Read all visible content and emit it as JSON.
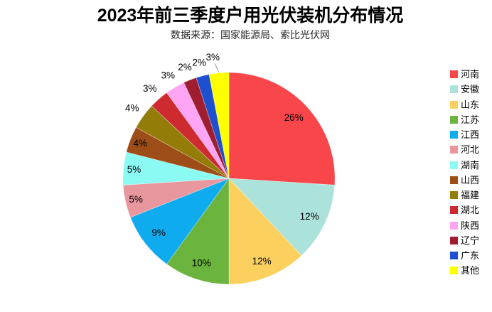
{
  "chart_data": {
    "type": "pie",
    "title": "2023年前三季度户用光伏装机分布情况",
    "subtitle": "数据来源：国家能源局、索比光伏网",
    "legend_position": "right",
    "start_angle": "top",
    "direction": "clockwise",
    "grid": false,
    "colors": {
      "background": "#FFFFFF",
      "title_text": "#000000",
      "subtitle_text": "#262626",
      "label_text": "#000000",
      "leader_line": "#9B9B9B"
    },
    "slices": [
      {
        "name": "河南",
        "value_pct": 26,
        "label": "26%",
        "color": "#F8464B",
        "label_placement": "inside",
        "leader_line": false
      },
      {
        "name": "安徽",
        "value_pct": 12,
        "label": "12%",
        "color": "#ABE3DA",
        "label_placement": "inside",
        "leader_line": false
      },
      {
        "name": "山东",
        "value_pct": 12,
        "label": "12%",
        "color": "#FBD05F",
        "label_placement": "inside",
        "leader_line": false
      },
      {
        "name": "江苏",
        "value_pct": 10,
        "label": "10%",
        "color": "#6BB43D",
        "label_placement": "inside",
        "leader_line": false
      },
      {
        "name": "江西",
        "value_pct": 9,
        "label": "9%",
        "color": "#0FABEF",
        "label_placement": "inside",
        "leader_line": false
      },
      {
        "name": "河北",
        "value_pct": 5,
        "label": "5%",
        "color": "#E9979E",
        "label_placement": "inside",
        "leader_line": false
      },
      {
        "name": "湖南",
        "value_pct": 5,
        "label": "5%",
        "color": "#8AFAF3",
        "label_placement": "inside",
        "leader_line": false
      },
      {
        "name": "山西",
        "value_pct": 4,
        "label": "4%",
        "color": "#9D4D17",
        "label_placement": "inside",
        "leader_line": false
      },
      {
        "name": "福建",
        "value_pct": 4,
        "label": "4%",
        "color": "#947C08",
        "label_placement": "outside",
        "leader_line": false
      },
      {
        "name": "湖北",
        "value_pct": 3,
        "label": "3%",
        "color": "#CD2B30",
        "label_placement": "outside",
        "leader_line": false
      },
      {
        "name": "陕西",
        "value_pct": 3,
        "label": "3%",
        "color": "#FEA5F5",
        "label_placement": "outside",
        "leader_line": false
      },
      {
        "name": "辽宁",
        "value_pct": 2,
        "label": "2%",
        "color": "#A01D30",
        "label_placement": "outside",
        "leader_line": false
      },
      {
        "name": "广东",
        "value_pct": 2,
        "label": "2%",
        "color": "#1C50CE",
        "label_placement": "outside",
        "leader_line": false
      },
      {
        "name": "其他",
        "value_pct": 3,
        "label": "3%",
        "color": "#FFFF00",
        "label_placement": "outside",
        "leader_line": true
      }
    ]
  }
}
